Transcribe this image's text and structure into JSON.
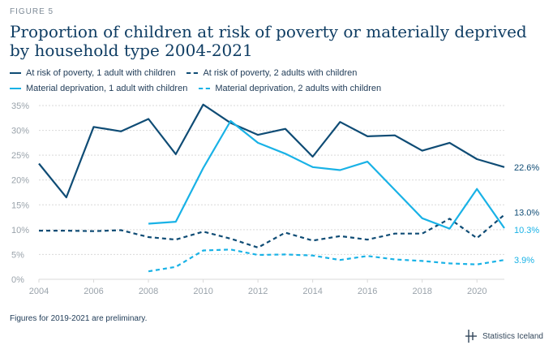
{
  "figure_label": "FIGURE 5",
  "title": "Proportion of children at risk of poverty or materially deprived by household type 2004-2021",
  "footnote": "Figures for 2019-2021 are preliminary.",
  "brand": {
    "name": "Statistics Iceland",
    "icon": "statistics-iceland-logo-icon"
  },
  "colors": {
    "dark": "#0f4c75",
    "light": "#19b2e6",
    "grid": "#d9d9d9",
    "axis_text": "#9aa3ab"
  },
  "chart_data": {
    "type": "line",
    "title": "Proportion of children at risk of poverty or materially deprived by household type 2004-2021",
    "xlabel": "",
    "ylabel": "",
    "xlim": [
      2004,
      2021
    ],
    "ylim": [
      0,
      35
    ],
    "x_ticks": [
      "2004",
      "2006",
      "2008",
      "2010",
      "2012",
      "2014",
      "2016",
      "2018",
      "2020"
    ],
    "y_ticks": [
      "0%",
      "5%",
      "10%",
      "15%",
      "20%",
      "25%",
      "30%",
      "35%"
    ],
    "grid": true,
    "legend_position": "top",
    "series": [
      {
        "name": "At risk of poverty, 1 adult with children",
        "color": "#0f4c75",
        "dash": false,
        "end_label": "22.6%",
        "points": [
          [
            2004,
            23.3
          ],
          [
            2005,
            16.5
          ],
          [
            2006,
            30.7
          ],
          [
            2007,
            29.8
          ],
          [
            2008,
            32.3
          ],
          [
            2009,
            25.2
          ],
          [
            2010,
            35.2
          ],
          [
            2011,
            31.5
          ],
          [
            2012,
            29.1
          ],
          [
            2013,
            30.3
          ],
          [
            2014,
            24.7
          ],
          [
            2015,
            31.7
          ],
          [
            2016,
            28.8
          ],
          [
            2017,
            29.0
          ],
          [
            2018,
            25.9
          ],
          [
            2019,
            27.5
          ],
          [
            2020,
            24.2
          ],
          [
            2021,
            22.6
          ]
        ]
      },
      {
        "name": "At risk of poverty, 2 adults with children",
        "color": "#0f4c75",
        "dash": true,
        "end_label": "13.0%",
        "points": [
          [
            2004,
            9.8
          ],
          [
            2005,
            9.8
          ],
          [
            2006,
            9.7
          ],
          [
            2007,
            9.9
          ],
          [
            2008,
            8.5
          ],
          [
            2009,
            8.0
          ],
          [
            2010,
            9.6
          ],
          [
            2011,
            8.2
          ],
          [
            2012,
            6.4
          ],
          [
            2013,
            9.4
          ],
          [
            2014,
            7.8
          ],
          [
            2015,
            8.7
          ],
          [
            2016,
            8.0
          ],
          [
            2017,
            9.2
          ],
          [
            2018,
            9.2
          ],
          [
            2019,
            12.2
          ],
          [
            2020,
            8.3
          ],
          [
            2021,
            13.0
          ]
        ]
      },
      {
        "name": "Material deprivation, 1 adult with children",
        "color": "#19b2e6",
        "dash": false,
        "end_label": "10.3%",
        "points": [
          [
            2008,
            11.2
          ],
          [
            2009,
            11.6
          ],
          [
            2010,
            22.4
          ],
          [
            2011,
            31.9
          ],
          [
            2012,
            27.5
          ],
          [
            2013,
            25.3
          ],
          [
            2014,
            22.6
          ],
          [
            2015,
            22.0
          ],
          [
            2016,
            23.7
          ],
          [
            2017,
            18.0
          ],
          [
            2018,
            12.3
          ],
          [
            2019,
            10.2
          ],
          [
            2020,
            18.2
          ],
          [
            2021,
            10.3
          ]
        ]
      },
      {
        "name": "Material deprivation, 2 adults with children",
        "color": "#19b2e6",
        "dash": true,
        "end_label": "3.9%",
        "points": [
          [
            2008,
            1.6
          ],
          [
            2009,
            2.5
          ],
          [
            2010,
            5.8
          ],
          [
            2011,
            6.0
          ],
          [
            2012,
            4.9
          ],
          [
            2013,
            5.0
          ],
          [
            2014,
            4.8
          ],
          [
            2015,
            3.9
          ],
          [
            2016,
            4.7
          ],
          [
            2017,
            4.0
          ],
          [
            2018,
            3.7
          ],
          [
            2019,
            3.2
          ],
          [
            2020,
            3.0
          ],
          [
            2021,
            3.9
          ]
        ]
      }
    ]
  }
}
